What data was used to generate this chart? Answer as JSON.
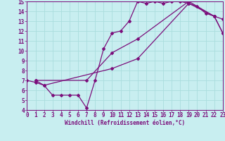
{
  "xlabel": "Windchill (Refroidissement éolien,°C)",
  "xlim": [
    0,
    23
  ],
  "ylim": [
    4,
    15
  ],
  "yticks": [
    4,
    5,
    6,
    7,
    8,
    9,
    10,
    11,
    12,
    13,
    14,
    15
  ],
  "xticks": [
    0,
    1,
    2,
    3,
    4,
    5,
    6,
    7,
    8,
    9,
    10,
    11,
    12,
    13,
    14,
    15,
    16,
    17,
    18,
    19,
    20,
    21,
    22,
    23
  ],
  "line_color": "#7b0e7b",
  "bg_color": "#c8eef0",
  "grid_color": "#aadddd",
  "line1_x": [
    0,
    1,
    2,
    3,
    4,
    5,
    6,
    7,
    8,
    9,
    10,
    11,
    12,
    13,
    14,
    15,
    16,
    17,
    18,
    19,
    20,
    21,
    22,
    23
  ],
  "line1_y": [
    7.0,
    6.8,
    6.5,
    5.5,
    5.5,
    5.5,
    5.5,
    4.2,
    7.0,
    10.2,
    11.8,
    12.0,
    13.0,
    15.0,
    14.8,
    15.0,
    14.8,
    15.0,
    15.0,
    14.8,
    14.5,
    13.8,
    13.5,
    13.2
  ],
  "line2_x": [
    1,
    2,
    10,
    13,
    19,
    22,
    23
  ],
  "line2_y": [
    7.0,
    6.5,
    8.2,
    9.2,
    14.8,
    13.5,
    11.8
  ],
  "line3_x": [
    1,
    7,
    10,
    13,
    19,
    22,
    23
  ],
  "line3_y": [
    7.0,
    7.0,
    9.8,
    11.2,
    15.0,
    13.5,
    11.8
  ],
  "marker": "D",
  "markersize": 2.0,
  "tick_fontsize": 5.5,
  "xlabel_fontsize": 5.5
}
